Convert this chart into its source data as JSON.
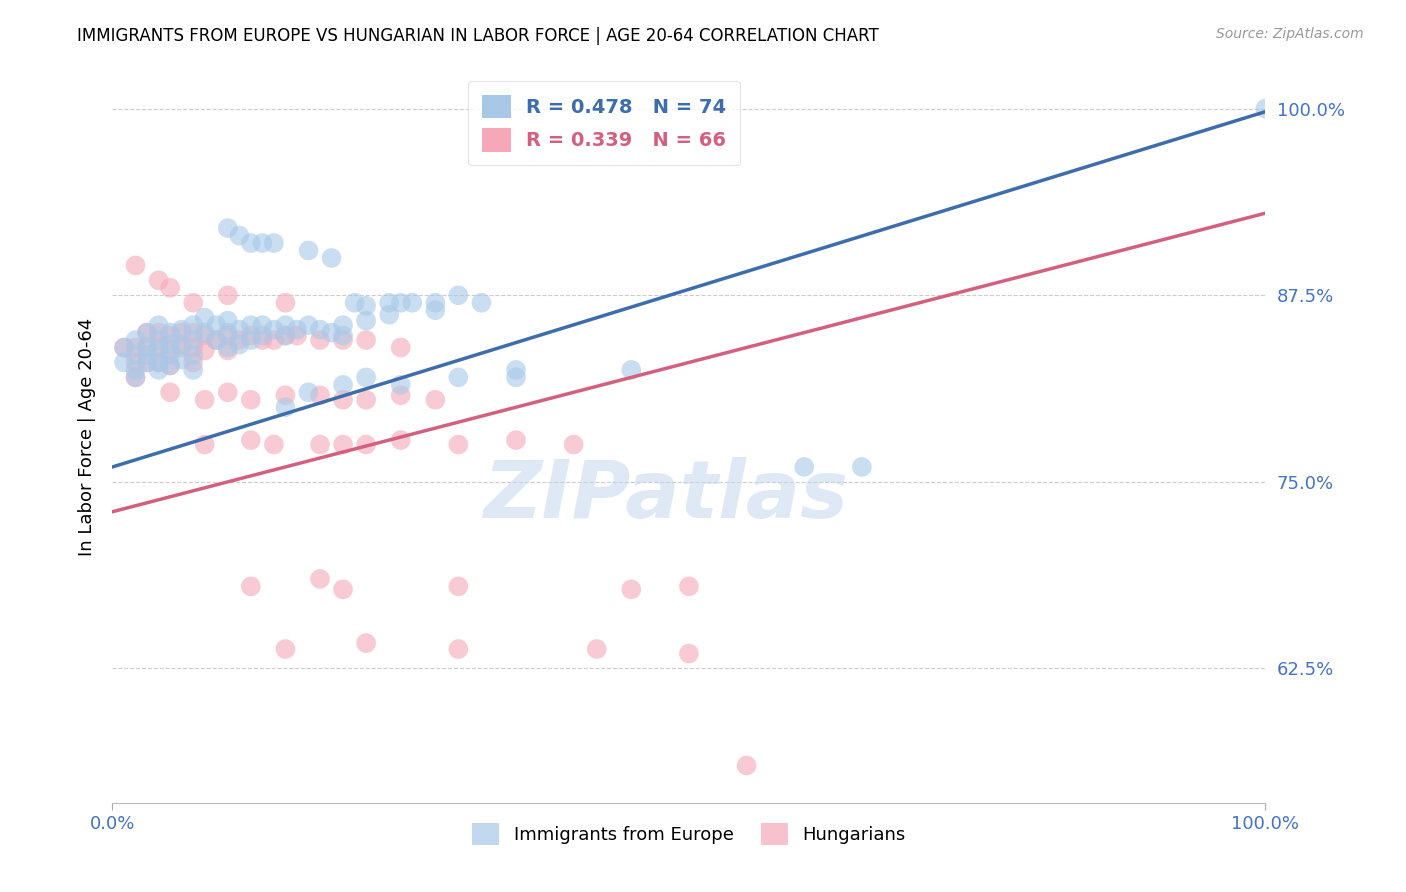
{
  "title": "IMMIGRANTS FROM EUROPE VS HUNGARIAN IN LABOR FORCE | AGE 20-64 CORRELATION CHART",
  "source_text": "Source: ZipAtlas.com",
  "ylabel": "In Labor Force | Age 20-64",
  "ytick_vals": [
    0.625,
    0.75,
    0.875,
    1.0
  ],
  "ytick_labels": [
    "62.5%",
    "75.0%",
    "87.5%",
    "100.0%"
  ],
  "xtick_vals": [
    0.0,
    1.0
  ],
  "xtick_labels": [
    "0.0%",
    "100.0%"
  ],
  "legend_label_blue": "Immigrants from Europe",
  "legend_label_pink": "Hungarians",
  "axis_color": "#4472c4",
  "watermark": "ZIPatlas",
  "blue_scatter": [
    [
      0.01,
      0.84
    ],
    [
      0.01,
      0.83
    ],
    [
      0.02,
      0.845
    ],
    [
      0.02,
      0.835
    ],
    [
      0.02,
      0.825
    ],
    [
      0.02,
      0.82
    ],
    [
      0.03,
      0.85
    ],
    [
      0.03,
      0.84
    ],
    [
      0.03,
      0.835
    ],
    [
      0.03,
      0.83
    ],
    [
      0.04,
      0.855
    ],
    [
      0.04,
      0.845
    ],
    [
      0.04,
      0.838
    ],
    [
      0.04,
      0.83
    ],
    [
      0.04,
      0.825
    ],
    [
      0.05,
      0.85
    ],
    [
      0.05,
      0.842
    ],
    [
      0.05,
      0.835
    ],
    [
      0.05,
      0.828
    ],
    [
      0.06,
      0.852
    ],
    [
      0.06,
      0.842
    ],
    [
      0.06,
      0.832
    ],
    [
      0.07,
      0.855
    ],
    [
      0.07,
      0.845
    ],
    [
      0.07,
      0.835
    ],
    [
      0.07,
      0.825
    ],
    [
      0.08,
      0.86
    ],
    [
      0.08,
      0.85
    ],
    [
      0.09,
      0.855
    ],
    [
      0.09,
      0.845
    ],
    [
      0.1,
      0.858
    ],
    [
      0.1,
      0.85
    ],
    [
      0.1,
      0.84
    ],
    [
      0.11,
      0.852
    ],
    [
      0.11,
      0.842
    ],
    [
      0.12,
      0.855
    ],
    [
      0.12,
      0.845
    ],
    [
      0.13,
      0.855
    ],
    [
      0.13,
      0.848
    ],
    [
      0.14,
      0.852
    ],
    [
      0.15,
      0.855
    ],
    [
      0.15,
      0.848
    ],
    [
      0.16,
      0.852
    ],
    [
      0.17,
      0.855
    ],
    [
      0.18,
      0.852
    ],
    [
      0.19,
      0.85
    ],
    [
      0.2,
      0.855
    ],
    [
      0.2,
      0.848
    ],
    [
      0.21,
      0.87
    ],
    [
      0.22,
      0.868
    ],
    [
      0.22,
      0.858
    ],
    [
      0.24,
      0.87
    ],
    [
      0.24,
      0.862
    ],
    [
      0.25,
      0.87
    ],
    [
      0.26,
      0.87
    ],
    [
      0.28,
      0.87
    ],
    [
      0.28,
      0.865
    ],
    [
      0.3,
      0.875
    ],
    [
      0.32,
      0.87
    ],
    [
      0.1,
      0.92
    ],
    [
      0.11,
      0.915
    ],
    [
      0.12,
      0.91
    ],
    [
      0.13,
      0.91
    ],
    [
      0.14,
      0.91
    ],
    [
      0.17,
      0.905
    ],
    [
      0.19,
      0.9
    ],
    [
      0.15,
      0.8
    ],
    [
      0.17,
      0.81
    ],
    [
      0.2,
      0.815
    ],
    [
      0.22,
      0.82
    ],
    [
      0.25,
      0.815
    ],
    [
      0.3,
      0.82
    ],
    [
      0.35,
      0.825
    ],
    [
      0.35,
      0.82
    ],
    [
      0.45,
      0.825
    ],
    [
      0.6,
      0.76
    ],
    [
      0.65,
      0.76
    ],
    [
      1.0,
      1.0
    ]
  ],
  "pink_scatter": [
    [
      0.01,
      0.84
    ],
    [
      0.02,
      0.84
    ],
    [
      0.02,
      0.83
    ],
    [
      0.02,
      0.82
    ],
    [
      0.03,
      0.85
    ],
    [
      0.03,
      0.84
    ],
    [
      0.03,
      0.83
    ],
    [
      0.04,
      0.85
    ],
    [
      0.04,
      0.84
    ],
    [
      0.04,
      0.83
    ],
    [
      0.05,
      0.848
    ],
    [
      0.05,
      0.838
    ],
    [
      0.05,
      0.828
    ],
    [
      0.06,
      0.85
    ],
    [
      0.06,
      0.84
    ],
    [
      0.07,
      0.85
    ],
    [
      0.07,
      0.84
    ],
    [
      0.07,
      0.83
    ],
    [
      0.08,
      0.848
    ],
    [
      0.08,
      0.838
    ],
    [
      0.09,
      0.845
    ],
    [
      0.1,
      0.848
    ],
    [
      0.1,
      0.838
    ],
    [
      0.11,
      0.845
    ],
    [
      0.12,
      0.848
    ],
    [
      0.13,
      0.845
    ],
    [
      0.14,
      0.845
    ],
    [
      0.15,
      0.848
    ],
    [
      0.16,
      0.848
    ],
    [
      0.18,
      0.845
    ],
    [
      0.2,
      0.845
    ],
    [
      0.22,
      0.845
    ],
    [
      0.25,
      0.84
    ],
    [
      0.02,
      0.895
    ],
    [
      0.04,
      0.885
    ],
    [
      0.05,
      0.88
    ],
    [
      0.07,
      0.87
    ],
    [
      0.1,
      0.875
    ],
    [
      0.15,
      0.87
    ],
    [
      0.05,
      0.81
    ],
    [
      0.08,
      0.805
    ],
    [
      0.1,
      0.81
    ],
    [
      0.12,
      0.805
    ],
    [
      0.15,
      0.808
    ],
    [
      0.18,
      0.808
    ],
    [
      0.2,
      0.805
    ],
    [
      0.22,
      0.805
    ],
    [
      0.25,
      0.808
    ],
    [
      0.28,
      0.805
    ],
    [
      0.08,
      0.775
    ],
    [
      0.12,
      0.778
    ],
    [
      0.14,
      0.775
    ],
    [
      0.18,
      0.775
    ],
    [
      0.2,
      0.775
    ],
    [
      0.22,
      0.775
    ],
    [
      0.25,
      0.778
    ],
    [
      0.3,
      0.775
    ],
    [
      0.35,
      0.778
    ],
    [
      0.4,
      0.775
    ],
    [
      0.12,
      0.68
    ],
    [
      0.18,
      0.685
    ],
    [
      0.2,
      0.678
    ],
    [
      0.3,
      0.68
    ],
    [
      0.45,
      0.678
    ],
    [
      0.5,
      0.68
    ],
    [
      0.15,
      0.638
    ],
    [
      0.22,
      0.642
    ],
    [
      0.3,
      0.638
    ],
    [
      0.42,
      0.638
    ],
    [
      0.5,
      0.635
    ],
    [
      0.55,
      0.56
    ]
  ],
  "blue_line": {
    "x0": 0.0,
    "y0": 0.76,
    "x1": 1.0,
    "y1": 0.998
  },
  "pink_line": {
    "x0": 0.0,
    "y0": 0.73,
    "x1": 1.0,
    "y1": 0.93
  },
  "blue_color": "#a8c8e8",
  "pink_color": "#f4a8b8",
  "blue_line_color": "#3d6daa",
  "pink_line_color": "#d46080",
  "xlim": [
    0.0,
    1.0
  ],
  "ylim": [
    0.535,
    1.025
  ],
  "background": "#ffffff",
  "grid_color": "#cccccc"
}
